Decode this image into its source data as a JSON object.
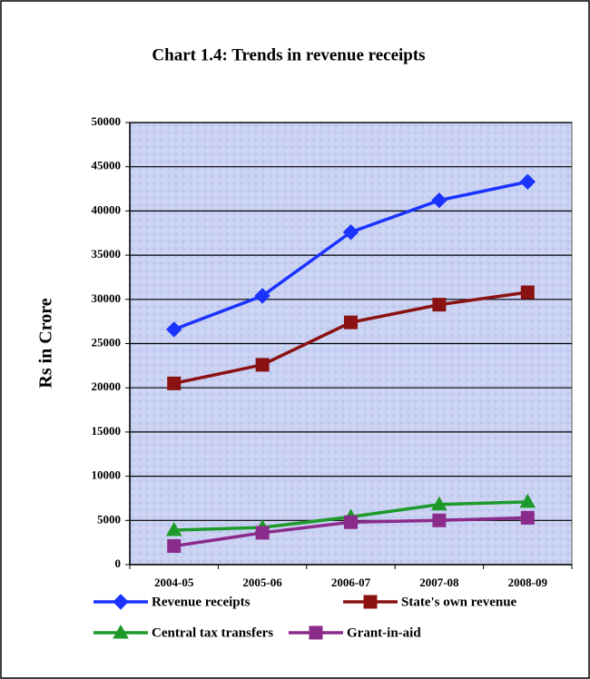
{
  "chart_data": {
    "type": "line",
    "title": "Chart 1.4: Trends in revenue receipts",
    "y_label": "Rs in Crore",
    "categories": [
      "2004-05",
      "2005-06",
      "2006-07",
      "2007-08",
      "2008-09"
    ],
    "series": [
      {
        "name": "Revenue receipts",
        "color": "#1a33ff",
        "marker": "diamond",
        "values": [
          26600,
          30400,
          37600,
          41200,
          43300
        ]
      },
      {
        "name": "State's own revenue",
        "color": "#8b1212",
        "marker": "square",
        "values": [
          20500,
          22600,
          27400,
          29400,
          30800
        ]
      },
      {
        "name": "Central tax transfers",
        "color": "#1e9a2a",
        "marker": "triangle",
        "values": [
          3900,
          4200,
          5400,
          6800,
          7100
        ]
      },
      {
        "name": "Grant-in-aid",
        "color": "#8b2b8b",
        "marker": "square",
        "values": [
          2100,
          3600,
          4800,
          5000,
          5300
        ]
      }
    ],
    "ylim": [
      0,
      50000
    ],
    "yticks": [
      0,
      5000,
      10000,
      15000,
      20000,
      25000,
      30000,
      35000,
      40000,
      45000,
      50000
    ],
    "grid": true,
    "legend": "bottom"
  }
}
